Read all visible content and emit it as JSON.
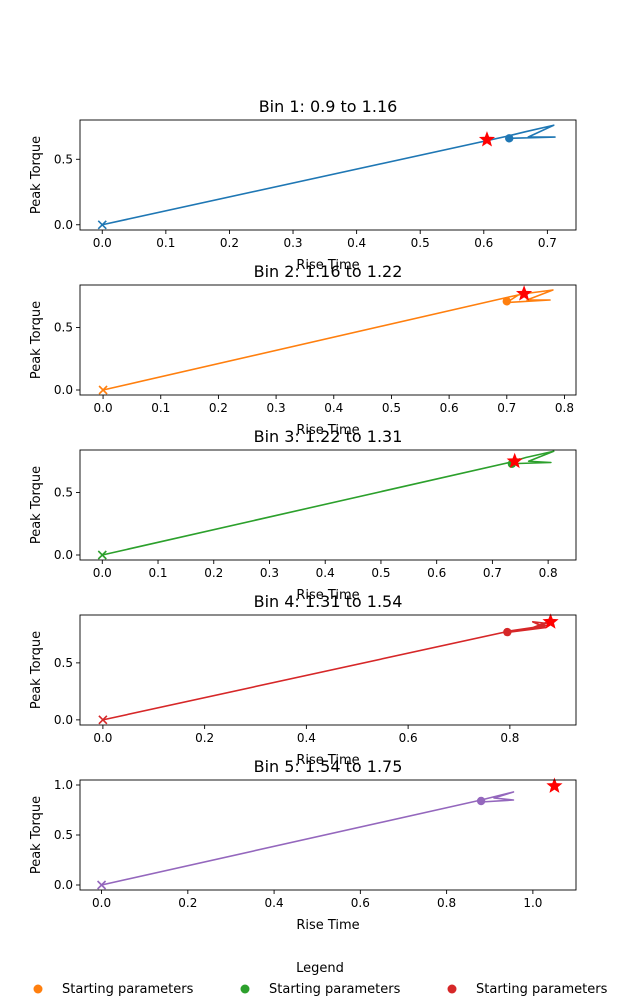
{
  "chart_data": [
    {
      "type": "line",
      "title": "Bin 1: 0.9 to 1.16",
      "xlabel": "Rise Time",
      "ylabel": "Peak Torque",
      "xlim": [
        -0.035,
        0.745
      ],
      "ylim": [
        -0.04,
        0.8
      ],
      "xticks": [
        0.0,
        0.1,
        0.2,
        0.3,
        0.4,
        0.5,
        0.6,
        0.7
      ],
      "xtick_labels": [
        "0.0",
        "0.1",
        "0.2",
        "0.3",
        "0.4",
        "0.5",
        "0.6",
        "0.7"
      ],
      "yticks": [
        0.0,
        0.5
      ],
      "ytick_labels": [
        "0.0",
        "0.5"
      ],
      "color": "#1f77b4",
      "series": [
        {
          "x": [
            0.0,
            0.64,
            0.665,
            0.71,
            0.67,
            0.712,
            0.64
          ],
          "y": [
            0.0,
            0.68,
            0.71,
            0.76,
            0.67,
            0.67,
            0.66
          ]
        }
      ],
      "start": {
        "x": 0.0,
        "y": 0.0,
        "marker": "x"
      },
      "current": {
        "x": 0.64,
        "y": 0.66,
        "marker": "circle"
      },
      "best": {
        "x": 0.605,
        "y": 0.65,
        "marker": "star",
        "color": "#ff0000"
      }
    },
    {
      "type": "line",
      "title": "Bin 2: 1.16 to 1.22",
      "xlabel": "Rise Time",
      "ylabel": "Peak Torque",
      "xlim": [
        -0.04,
        0.82
      ],
      "ylim": [
        -0.04,
        0.84
      ],
      "xticks": [
        0.0,
        0.1,
        0.2,
        0.3,
        0.4,
        0.5,
        0.6,
        0.7,
        0.8
      ],
      "xtick_labels": [
        "0.0",
        "0.1",
        "0.2",
        "0.3",
        "0.4",
        "0.5",
        "0.6",
        "0.7",
        "0.8"
      ],
      "yticks": [
        0.0,
        0.5
      ],
      "ytick_labels": [
        "0.0",
        "0.5"
      ],
      "color": "#ff7f0e",
      "series": [
        {
          "x": [
            0.0,
            0.7,
            0.73,
            0.78,
            0.735,
            0.775,
            0.7,
            0.72
          ],
          "y": [
            0.0,
            0.74,
            0.77,
            0.8,
            0.72,
            0.72,
            0.7,
            0.76
          ]
        }
      ],
      "start": {
        "x": 0.0,
        "y": 0.0,
        "marker": "x"
      },
      "current": {
        "x": 0.7,
        "y": 0.71,
        "marker": "circle"
      },
      "best": {
        "x": 0.73,
        "y": 0.77,
        "marker": "star",
        "color": "#ff0000"
      }
    },
    {
      "type": "line",
      "title": "Bin 3: 1.22 to 1.31",
      "xlabel": "Rise Time",
      "ylabel": "Peak Torque",
      "xlim": [
        -0.04,
        0.85
      ],
      "ylim": [
        -0.04,
        0.84
      ],
      "xticks": [
        0.0,
        0.1,
        0.2,
        0.3,
        0.4,
        0.5,
        0.6,
        0.7,
        0.8
      ],
      "xtick_labels": [
        "0.0",
        "0.1",
        "0.2",
        "0.3",
        "0.4",
        "0.5",
        "0.6",
        "0.7",
        "0.8"
      ],
      "yticks": [
        0.0,
        0.5
      ],
      "ytick_labels": [
        "0.0",
        "0.5"
      ],
      "color": "#2ca02c",
      "series": [
        {
          "x": [
            0.0,
            0.73,
            0.76,
            0.81,
            0.765,
            0.805,
            0.73,
            0.75
          ],
          "y": [
            0.0,
            0.74,
            0.78,
            0.83,
            0.75,
            0.74,
            0.73,
            0.77
          ]
        }
      ],
      "start": {
        "x": 0.0,
        "y": 0.0,
        "marker": "x"
      },
      "current": {
        "x": 0.735,
        "y": 0.73,
        "marker": "circle"
      },
      "best": {
        "x": 0.74,
        "y": 0.75,
        "marker": "star",
        "color": "#ff0000"
      }
    },
    {
      "type": "line",
      "title": "Bin 4: 1.31 to 1.54",
      "xlabel": "Rise Time",
      "ylabel": "Peak Torque",
      "xlim": [
        -0.045,
        0.93
      ],
      "ylim": [
        -0.045,
        0.92
      ],
      "xticks": [
        0.0,
        0.2,
        0.4,
        0.6,
        0.8
      ],
      "xtick_labels": [
        "0.0",
        "0.2",
        "0.4",
        "0.6",
        "0.8"
      ],
      "yticks": [
        0.0,
        0.5
      ],
      "ytick_labels": [
        "0.0",
        "0.5"
      ],
      "color": "#d62728",
      "series": [
        {
          "x": [
            0.0,
            0.8,
            0.86,
            0.88,
            0.84,
            0.885,
            0.845,
            0.87,
            0.8
          ],
          "y": [
            0.0,
            0.78,
            0.82,
            0.87,
            0.8,
            0.84,
            0.86,
            0.81,
            0.77
          ]
        }
      ],
      "start": {
        "x": 0.0,
        "y": 0.0,
        "marker": "x"
      },
      "current": {
        "x": 0.795,
        "y": 0.77,
        "marker": "circle"
      },
      "best": {
        "x": 0.88,
        "y": 0.86,
        "marker": "star",
        "color": "#ff0000"
      }
    },
    {
      "type": "line",
      "title": "Bin 5: 1.54 to 1.75",
      "xlabel": "Rise Time",
      "ylabel": "Peak Torque",
      "xlim": [
        -0.05,
        1.1
      ],
      "ylim": [
        -0.05,
        1.05
      ],
      "xticks": [
        0.0,
        0.2,
        0.4,
        0.6,
        0.8,
        1.0
      ],
      "xtick_labels": [
        "0.0",
        "0.2",
        "0.4",
        "0.6",
        "0.8",
        "1.0"
      ],
      "yticks": [
        0.0,
        0.5,
        1.0
      ],
      "ytick_labels": [
        "0.0",
        "0.5",
        "1.0"
      ],
      "color": "#9467bd",
      "series": [
        {
          "x": [
            0.0,
            0.88,
            0.955,
            0.91,
            0.955,
            0.88
          ],
          "y": [
            0.0,
            0.85,
            0.93,
            0.87,
            0.85,
            0.83
          ]
        }
      ],
      "start": {
        "x": 0.0,
        "y": 0.0,
        "marker": "x"
      },
      "current": {
        "x": 0.88,
        "y": 0.84,
        "marker": "circle"
      },
      "best": {
        "x": 1.05,
        "y": 0.99,
        "marker": "star",
        "color": "#ff0000"
      }
    }
  ],
  "legend": {
    "title": "Legend",
    "entries": [
      {
        "label": "Starting parameters",
        "color": "#ff7f0e"
      },
      {
        "label": "Starting parameters",
        "color": "#2ca02c"
      },
      {
        "label": "Starting parameters",
        "color": "#d62728"
      }
    ]
  }
}
